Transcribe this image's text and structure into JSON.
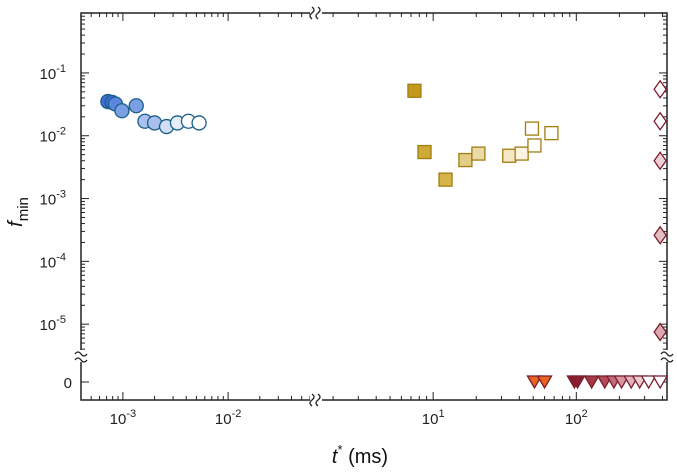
{
  "chart_data": {
    "type": "scatter",
    "xlabel": {
      "main": "t",
      "sup": "*",
      "unit": " (ms)"
    },
    "ylabel": {
      "main": "f",
      "sub": "min"
    },
    "x_axis": {
      "scale": "log with broken axis",
      "segments": [
        {
          "range": [
            0.0004,
            0.06
          ],
          "ticks": [
            {
              "value": 0.001,
              "base": "10",
              "exp": "-3"
            },
            {
              "value": 0.01,
              "base": "10",
              "exp": "-2"
            }
          ]
        },
        {
          "range": [
            1.7,
            430
          ],
          "ticks": [
            {
              "value": 10,
              "base": "10",
              "exp": "1"
            },
            {
              "value": 100,
              "base": "10",
              "exp": "2"
            }
          ]
        }
      ]
    },
    "y_axis": {
      "scale": "log with broken axis (zero shown separately)",
      "range_log": [
        3e-06,
        0.9
      ],
      "ticks": [
        {
          "value": 0.1,
          "base": "10",
          "exp": "-1"
        },
        {
          "value": 0.01,
          "base": "10",
          "exp": "-2"
        },
        {
          "value": 0.001,
          "base": "10",
          "exp": "-3"
        },
        {
          "value": 0.0001,
          "base": "10",
          "exp": "-4"
        },
        {
          "value": 1e-05,
          "base": "10",
          "exp": "-5"
        }
      ],
      "zero_tick": "0"
    },
    "series": [
      {
        "name": "circles",
        "marker": "circle",
        "stroke": "#1a5f8a",
        "points": [
          {
            "x": 0.00072,
            "y": 0.035,
            "fill": "#3f6ed8"
          },
          {
            "x": 0.00079,
            "y": 0.034,
            "fill": "#3f6ed8"
          },
          {
            "x": 0.00085,
            "y": 0.032,
            "fill": "#5a88de"
          },
          {
            "x": 0.00098,
            "y": 0.025,
            "fill": "#7c9fe4"
          },
          {
            "x": 0.00134,
            "y": 0.03,
            "fill": "#7c9fe4"
          },
          {
            "x": 0.00162,
            "y": 0.017,
            "fill": "#aac0ee"
          },
          {
            "x": 0.002,
            "y": 0.016,
            "fill": "#aac0ee"
          },
          {
            "x": 0.0026,
            "y": 0.014,
            "fill": "#d2def6"
          },
          {
            "x": 0.0033,
            "y": 0.016,
            "fill": "#e7eefa"
          },
          {
            "x": 0.0042,
            "y": 0.017,
            "fill": "#ffffff"
          },
          {
            "x": 0.0053,
            "y": 0.016,
            "fill": "#ffffff"
          }
        ]
      },
      {
        "name": "squares",
        "marker": "square",
        "stroke": "#a07d0f",
        "points": [
          {
            "x": 7.4,
            "y": 0.052,
            "fill": "#c49a1c"
          },
          {
            "x": 8.7,
            "y": 0.0055,
            "fill": "#d0aa36"
          },
          {
            "x": 12.2,
            "y": 0.002,
            "fill": "#d6b44a"
          },
          {
            "x": 16.8,
            "y": 0.0041,
            "fill": "#e4cd86"
          },
          {
            "x": 20.7,
            "y": 0.0052,
            "fill": "#ecdaa6"
          },
          {
            "x": 34.0,
            "y": 0.0048,
            "fill": "#f4e8c6"
          },
          {
            "x": 41.5,
            "y": 0.0052,
            "fill": "#fbf4e2"
          },
          {
            "x": 51.0,
            "y": 0.007,
            "fill": "#ffffff"
          },
          {
            "x": 49.0,
            "y": 0.013,
            "fill": "#ffffff"
          },
          {
            "x": 67.0,
            "y": 0.011,
            "fill": "#ffffff"
          }
        ]
      },
      {
        "name": "diamonds",
        "marker": "diamond",
        "stroke": "#7a1e2c",
        "points": [
          {
            "x": 385,
            "y": 0.055,
            "fill": "#ffffff"
          },
          {
            "x": 385,
            "y": 0.017,
            "fill": "#ffffff"
          },
          {
            "x": 385,
            "y": 0.004,
            "fill": "#ecd0d5"
          },
          {
            "x": 385,
            "y": 0.00026,
            "fill": "#e3bcc4"
          },
          {
            "x": 385,
            "y": 7.5e-06,
            "fill": "#dca9b3"
          }
        ]
      },
      {
        "name": "triangles",
        "marker": "triangle-down",
        "stroke": "#7a1e2c",
        "points": [
          {
            "x": 51,
            "y": 0,
            "fill": "#e8631f"
          },
          {
            "x": 60,
            "y": 0,
            "fill": "#e8631f"
          },
          {
            "x": 97,
            "y": 0,
            "fill": "#8b1e2e"
          },
          {
            "x": 102,
            "y": 0,
            "fill": "#8b1e2e"
          },
          {
            "x": 128,
            "y": 0,
            "fill": "#a63848"
          },
          {
            "x": 158,
            "y": 0,
            "fill": "#b44a5a"
          },
          {
            "x": 183,
            "y": 0,
            "fill": "#c06b79"
          },
          {
            "x": 207,
            "y": 0,
            "fill": "#d895a0"
          },
          {
            "x": 242,
            "y": 0,
            "fill": "#e3b1ba"
          },
          {
            "x": 277,
            "y": 0,
            "fill": "#eccad0"
          },
          {
            "x": 320,
            "y": 0,
            "fill": "#ffffff"
          },
          {
            "x": 385,
            "y": 0,
            "fill": "#ffffff"
          }
        ]
      }
    ],
    "break_symbol": "≈"
  }
}
